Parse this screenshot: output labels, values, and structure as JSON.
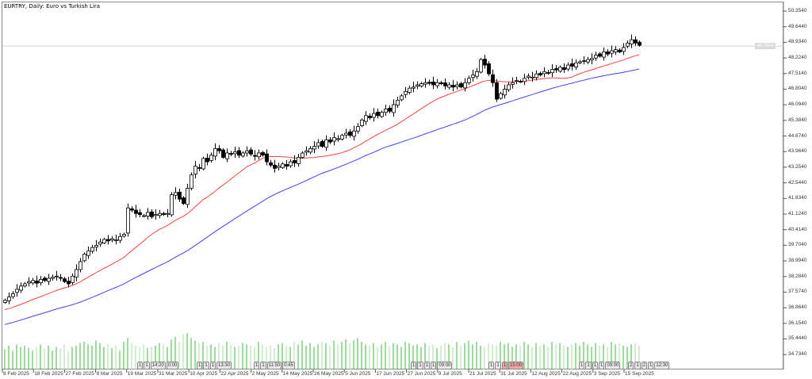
{
  "chart": {
    "title": "EURTRY, Daily:  Euro vs Turkish Lira",
    "current_price": "48.7614",
    "colors": {
      "up_body": "#ffffff",
      "down_body": "#000000",
      "ma_fast": "#ff4040",
      "ma_slow": "#4040ff",
      "volume_up": "#3cb83c",
      "volume_down": "#a8dca8",
      "price_line": "#d0d0d0"
    },
    "y_axis_labels": [
      "50.3540",
      "49.6440",
      "48.9340",
      "48.2240",
      "47.5140",
      "46.8040",
      "46.0940",
      "45.3840",
      "44.6740",
      "43.9640",
      "43.2540",
      "42.5440",
      "41.8340",
      "41.1240",
      "40.4140",
      "39.7040",
      "38.9940",
      "38.2840",
      "37.5740",
      "36.8640",
      "36.1540",
      "35.4440",
      "34.7340"
    ],
    "x_axis_labels": [
      "8 Feb 2025",
      "18 Feb 2025",
      "27 Feb 2025",
      "8 Mar 2025",
      "19 Mar 2025",
      "31 Mar 2025",
      "10 Apr 2025",
      "22 Apr 2025",
      "2 May 2025",
      "14 May 2025",
      "26 May 2025",
      "5 Jun 2025",
      "17 Jun 2025",
      "27 Jun 2025",
      "9 Jul 2025",
      "21 Jul 2025",
      "31 Jul 2025",
      "12 Aug 2025",
      "22 Aug 2025",
      "3 Sep 2025",
      "15 Sep 2025"
    ],
    "events": [
      {
        "labels": [
          "1",
          "1",
          "14:20",
          "0:00"
        ],
        "highlight": false
      },
      {
        "labels": [
          "1",
          "1",
          "1",
          "13:30"
        ],
        "highlight": false
      },
      {
        "labels": [
          "1",
          "1",
          "11:50",
          "0:45"
        ],
        "highlight": false
      },
      {
        "labels": [
          "1",
          "1",
          "1",
          "1",
          "09:00"
        ],
        "highlight": false
      },
      {
        "labels": [
          "1",
          "1",
          "1",
          "15:00"
        ],
        "highlight": true
      },
      {
        "labels": [
          "1",
          "1",
          "1",
          "1",
          "09:00"
        ],
        "highlight": false
      },
      {
        "labels": [
          "2",
          "1",
          "2",
          "1",
          "12:30"
        ],
        "highlight": false
      }
    ]
  },
  "chart_data": {
    "type": "candlestick",
    "symbol": "EURTRY",
    "timeframe": "Daily",
    "ylim": [
      34.3,
      51.0
    ],
    "ma_periods": [
      20,
      50
    ],
    "close": [
      37.2,
      37.35,
      37.5,
      37.7,
      37.85,
      37.95,
      38.05,
      38.1,
      37.98,
      38.15,
      38.1,
      38.2,
      38.25,
      38.3,
      38.2,
      38.05,
      37.95,
      38.3,
      38.6,
      38.96,
      39.3,
      39.45,
      39.6,
      39.7,
      39.85,
      39.97,
      39.9,
      40.0,
      39.95,
      40.1,
      40.2,
      41.4,
      41.3,
      41.15,
      41.1,
      41.05,
      41.2,
      41.0,
      41.1,
      41.15,
      41.1,
      41.15,
      42.0,
      42.1,
      41.8,
      41.6,
      42.3,
      42.9,
      43.3,
      43.2,
      43.65,
      43.5,
      43.8,
      44.1,
      44.0,
      43.7,
      43.9,
      43.85,
      43.95,
      43.8,
      43.9,
      44.0,
      43.85,
      43.75,
      43.9,
      43.8,
      43.5,
      43.35,
      43.2,
      43.3,
      43.4,
      43.3,
      43.5,
      43.45,
      43.7,
      43.9,
      44.0,
      44.1,
      44.2,
      44.37,
      44.2,
      44.5,
      44.4,
      44.6,
      44.55,
      44.7,
      44.8,
      44.7,
      44.9,
      45.1,
      45.4,
      45.6,
      45.5,
      45.7,
      45.6,
      45.75,
      45.9,
      45.8,
      46.1,
      46.3,
      46.5,
      46.7,
      46.85,
      46.9,
      47.0,
      47.05,
      47.1,
      47.07,
      47.0,
      47.1,
      47.05,
      46.95,
      47.0,
      46.9,
      47.0,
      46.9,
      47.1,
      47.3,
      47.45,
      47.6,
      48.15,
      47.9,
      47.5,
      47.1,
      46.35,
      46.6,
      46.8,
      47.0,
      47.1,
      47.2,
      47.15,
      47.3,
      47.4,
      47.35,
      47.5,
      47.45,
      47.6,
      47.55,
      47.7,
      47.68,
      47.8,
      47.7,
      47.9,
      47.85,
      48.0,
      48.05,
      48.1,
      48.15,
      48.2,
      48.35,
      48.3,
      48.5,
      48.4,
      48.55,
      48.6,
      48.5,
      48.7,
      48.9,
      49.05,
      48.9,
      48.8
    ],
    "volume": [
      32,
      38,
      30,
      40,
      36,
      38,
      34,
      30,
      36,
      40,
      32,
      38,
      30,
      36,
      34,
      40,
      30,
      36,
      38,
      42,
      44,
      40,
      38,
      46,
      42,
      36,
      40,
      34,
      38,
      30,
      44,
      50,
      42,
      38,
      36,
      40,
      34,
      36,
      38,
      42,
      40,
      36,
      48,
      52,
      44,
      56,
      58,
      50,
      46,
      42,
      44,
      38,
      40,
      36,
      42,
      38,
      44,
      40,
      36,
      38,
      42,
      40,
      38,
      36,
      44,
      40,
      36,
      38,
      34,
      40,
      42,
      38,
      36,
      44,
      40,
      46,
      38,
      42,
      36,
      40,
      44,
      42,
      38,
      46,
      40,
      44,
      48,
      42,
      46,
      50,
      44,
      40,
      38,
      42,
      36,
      40,
      44,
      38,
      42,
      40,
      36,
      44,
      42,
      38,
      40,
      36,
      42,
      38,
      40,
      34,
      38,
      42,
      40,
      36,
      44,
      38,
      42,
      46,
      40,
      44,
      38,
      36,
      42,
      40,
      38,
      44,
      40,
      42,
      36,
      40,
      38,
      44,
      40,
      36,
      42,
      38,
      40,
      36,
      44,
      40,
      42,
      38,
      36,
      40,
      42,
      38,
      44,
      40,
      36,
      42,
      38,
      40,
      36,
      44,
      40,
      42,
      38,
      36,
      40,
      42,
      38
    ]
  }
}
